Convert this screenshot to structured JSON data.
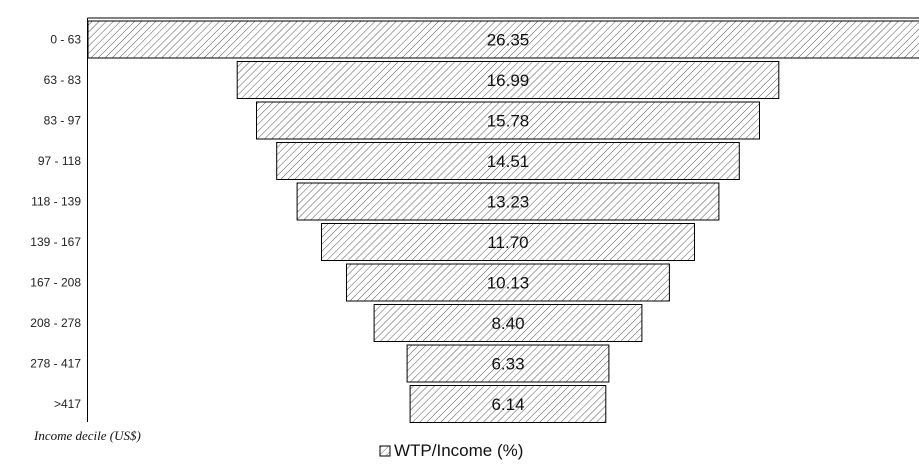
{
  "chart_data": {
    "type": "bar",
    "orientation": "horizontal",
    "layout": "centered-funnel",
    "categories": [
      "0 - 63",
      "63 - 83",
      "83 - 97",
      "97 - 118",
      "118 - 139",
      "139 - 167",
      "167 - 208",
      "208 - 278",
      "278 - 417",
      ">417"
    ],
    "series": [
      {
        "name": "WTP/Income (%)",
        "values": [
          26.35,
          16.99,
          15.78,
          14.51,
          13.23,
          11.7,
          10.13,
          8.4,
          6.33,
          6.14
        ]
      }
    ],
    "value_labels": [
      "26.35",
      "16.99",
      "15.78",
      "14.51",
      "13.23",
      "11.70",
      "10.13",
      "8.40",
      "6.33",
      "6.14"
    ],
    "ylabel": "Income decile (US$)",
    "xlabel": "",
    "title": "",
    "legend": "bottom-center",
    "grid": false,
    "bar_pattern": "diagonal-hatch",
    "colors": {
      "bar_fill": "#ffffff",
      "hatch": "#555555",
      "bar_stroke": "#000000"
    }
  }
}
